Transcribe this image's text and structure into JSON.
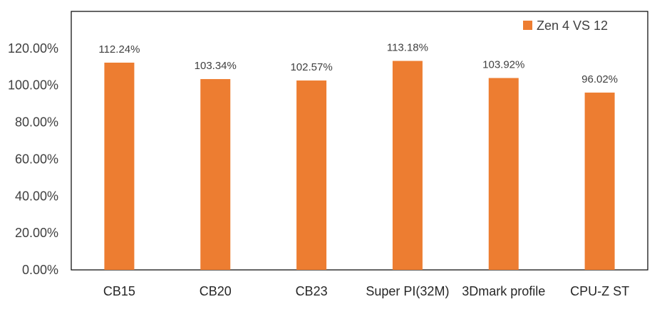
{
  "chart_data": {
    "type": "bar",
    "title": "",
    "xlabel": "",
    "ylabel": "",
    "categories": [
      "CB15",
      "CB20",
      "CB23",
      "Super PI(32M)",
      "3Dmark profile",
      "CPU-Z ST"
    ],
    "series": [
      {
        "name": "Zen 4 VS 12",
        "values": [
          112.24,
          103.34,
          102.57,
          113.18,
          103.92,
          96.02
        ],
        "labels": [
          "112.24%",
          "103.34%",
          "102.57%",
          "113.18%",
          "103.92%",
          "96.02%"
        ]
      }
    ],
    "ylim": [
      0,
      140
    ],
    "yticks": [
      0,
      20,
      40,
      60,
      80,
      100,
      120
    ],
    "ytick_labels": [
      "0.00%",
      "20.00%",
      "40.00%",
      "60.00%",
      "80.00%",
      "100.00%",
      "120.00%"
    ],
    "grid": false,
    "legend_position": "top-right",
    "colors": {
      "bar": "#ED7D31",
      "axis": "#000000"
    }
  }
}
